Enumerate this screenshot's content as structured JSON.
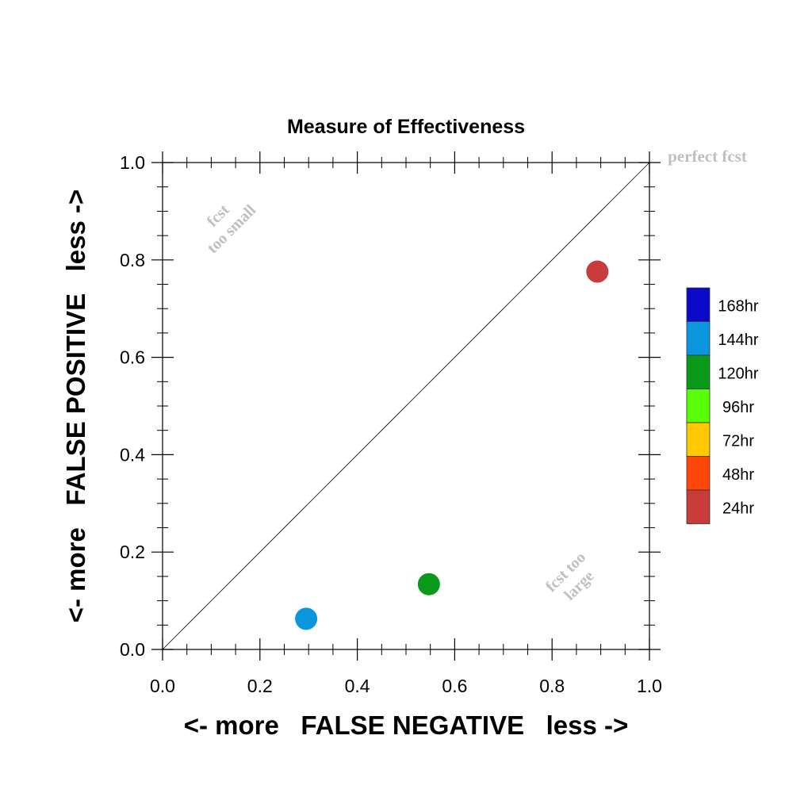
{
  "chart_data": {
    "type": "scatter",
    "title": "Measure of Effectiveness",
    "xlabel": "<- more   FALSE NEGATIVE   less ->",
    "ylabel": "<- more   FALSE POSITIVE   less ->",
    "xlim": [
      0.0,
      1.0
    ],
    "ylim": [
      0.0,
      1.0
    ],
    "x_ticks": [
      "0.0",
      "0.2",
      "0.4",
      "0.6",
      "0.8",
      "1.0"
    ],
    "y_ticks": [
      "0.0",
      "0.2",
      "0.4",
      "0.6",
      "0.8",
      "1.0"
    ],
    "tick_values": [
      0.0,
      0.2,
      0.4,
      0.6,
      0.8,
      1.0
    ],
    "grid": false,
    "diagonal": {
      "from": [
        0,
        0
      ],
      "to": [
        1,
        1
      ]
    },
    "annotations": {
      "perfect": "perfect fcst",
      "too_small": [
        "fcst",
        "too small"
      ],
      "too_large": [
        "fcst too",
        "large"
      ]
    },
    "points": [
      {
        "series": "144hr",
        "x": 0.295,
        "y": 0.063
      },
      {
        "series": "120hr",
        "x": 0.547,
        "y": 0.134
      },
      {
        "series": "24hr",
        "x": 0.893,
        "y": 0.776
      }
    ],
    "legend": {
      "placement": "right",
      "entries": [
        {
          "name": "168hr",
          "color": "#0a0ac8"
        },
        {
          "name": "144hr",
          "color": "#0a96dc"
        },
        {
          "name": "120hr",
          "color": "#0a9a1a"
        },
        {
          "name": "96hr",
          "color": "#5aff0a"
        },
        {
          "name": "72hr",
          "color": "#ffc800"
        },
        {
          "name": "48hr",
          "color": "#ff460a"
        },
        {
          "name": "24hr",
          "color": "#c83c3c"
        }
      ]
    },
    "annotation_color": "#bfbfbf"
  }
}
